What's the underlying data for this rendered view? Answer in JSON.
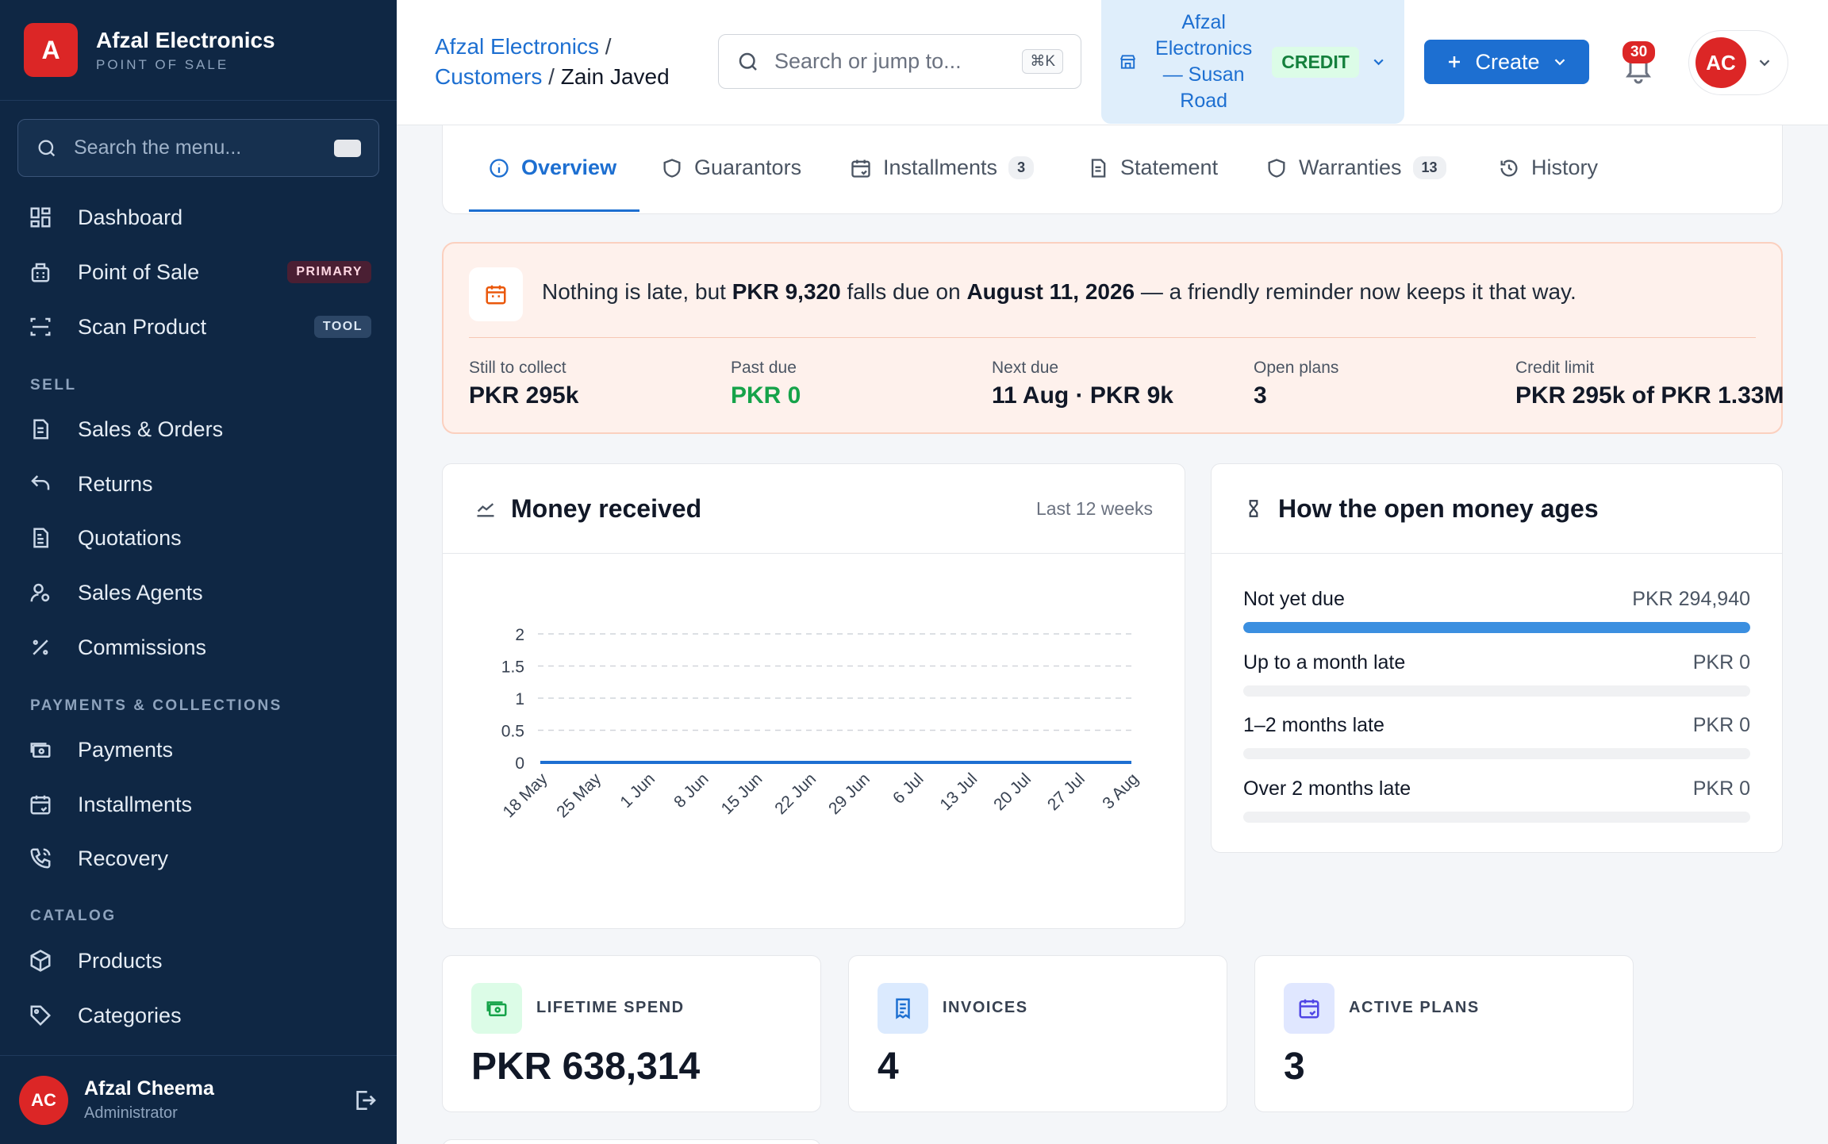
{
  "brand": {
    "initial": "A",
    "name": "Afzal Electronics",
    "subtitle": "POINT OF SALE"
  },
  "sidebar": {
    "search_placeholder": "Search the menu...",
    "items": [
      {
        "label": "Dashboard",
        "icon": "grid-icon"
      },
      {
        "label": "Point of Sale",
        "icon": "register-icon",
        "badge": "PRIMARY"
      },
      {
        "label": "Scan Product",
        "icon": "scan-icon",
        "badge": "TOOL"
      },
      {
        "label": "Sales & Orders",
        "icon": "document-icon"
      },
      {
        "label": "Returns",
        "icon": "return-arrow-icon"
      },
      {
        "label": "Quotations",
        "icon": "quote-document-icon"
      },
      {
        "label": "Sales Agents",
        "icon": "user-agent-icon"
      },
      {
        "label": "Commissions",
        "icon": "percent-icon"
      },
      {
        "label": "Payments",
        "icon": "cash-icon"
      },
      {
        "label": "Installments",
        "icon": "calendar-repeat-icon"
      },
      {
        "label": "Recovery",
        "icon": "phone-call-icon"
      },
      {
        "label": "Products",
        "icon": "box-icon"
      },
      {
        "label": "Categories",
        "icon": "tag-icon"
      }
    ],
    "sections": {
      "sell": "SELL",
      "payments": "PAYMENTS & COLLECTIONS",
      "catalog": "CATALOG"
    },
    "user": {
      "initials": "AC",
      "name": "Afzal Cheema",
      "role": "Administrator"
    }
  },
  "topbar": {
    "breadcrumb": {
      "root": "Afzal Electronics",
      "sep1": "/",
      "section": "Customers",
      "sep2": "/",
      "current": "Zain Javed"
    },
    "search_placeholder": "Search or jump to...",
    "search_shortcut": "⌘K",
    "store": {
      "name": "Afzal Electronics — Susan Road",
      "mode": "CREDIT"
    },
    "create_label": "Create",
    "notifications_count": "30",
    "account_initials": "AC"
  },
  "tabs": [
    {
      "label": "Overview",
      "icon": "info-icon",
      "active": true
    },
    {
      "label": "Guarantors",
      "icon": "shield-icon"
    },
    {
      "label": "Installments",
      "icon": "calendar-repeat-icon",
      "count": "3"
    },
    {
      "label": "Statement",
      "icon": "document-icon"
    },
    {
      "label": "Warranties",
      "icon": "shield-icon",
      "count": "13"
    },
    {
      "label": "History",
      "icon": "history-icon"
    }
  ],
  "alert": {
    "icon": "calendar-icon",
    "msg_prefix": "Nothing is late, but ",
    "amount": "PKR 9,320",
    "msg_mid": " falls due on ",
    "date": "August 11, 2026",
    "msg_suffix": " — a friendly reminder now keeps it that way.",
    "stats": [
      {
        "label": "Still to collect",
        "value": "PKR 295k"
      },
      {
        "label": "Past due",
        "value": "PKR 0",
        "color": "#16a34a"
      },
      {
        "label": "Next due",
        "value": "11 Aug · PKR 9k"
      },
      {
        "label": "Open plans",
        "value": "3"
      },
      {
        "label": "Credit limit",
        "value": "PKR 295k of PKR 1.33M"
      }
    ]
  },
  "money_received": {
    "title": "Money received",
    "note": "Last 12 weeks",
    "icon": "line-chart-icon"
  },
  "chart_data": {
    "type": "line",
    "title": "",
    "xlabel": "",
    "ylabel": "",
    "categories": [
      "18 May",
      "25 May",
      "1 Jun",
      "8 Jun",
      "15 Jun",
      "22 Jun",
      "29 Jun",
      "6 Jul",
      "13 Jul",
      "20 Jul",
      "27 Jul",
      "3 Aug"
    ],
    "series": [
      {
        "values": [
          0,
          0,
          0,
          0,
          0,
          0,
          0,
          0,
          0,
          0,
          0,
          0
        ],
        "color": "#1d6fd1"
      }
    ],
    "ylim": [
      0,
      2
    ],
    "yticks": [
      "0",
      "0.5",
      "1",
      "1.5",
      "2"
    ],
    "grid": true
  },
  "aging": {
    "title": "How the open money ages",
    "icon": "hourglass-icon",
    "rows": [
      {
        "label": "Not yet due",
        "value": "PKR 294,940",
        "fill": 1.0
      },
      {
        "label": "Up to a month late",
        "value": "PKR 0",
        "fill": 0
      },
      {
        "label": "1–2 months late",
        "value": "PKR 0",
        "fill": 0
      },
      {
        "label": "Over 2 months late",
        "value": "PKR 0",
        "fill": 0
      }
    ]
  },
  "kpis": [
    {
      "label": "LIFETIME SPEND",
      "value": "PKR 638,314",
      "icon": "cash-icon",
      "color": "#16a34a",
      "bg": "#dcfce7"
    },
    {
      "label": "INVOICES",
      "value": "4",
      "icon": "receipt-icon",
      "color": "#1d6fd1",
      "bg": "#dbeafe"
    },
    {
      "label": "ACTIVE PLANS",
      "value": "3",
      "icon": "calendar-repeat-icon",
      "color": "#4f46e5",
      "bg": "#e0e7ff"
    }
  ],
  "colors": {
    "sidebar_bg": "#0f2744",
    "accent": "#1d6fd1",
    "danger": "#dc2626",
    "success": "#16a34a"
  }
}
